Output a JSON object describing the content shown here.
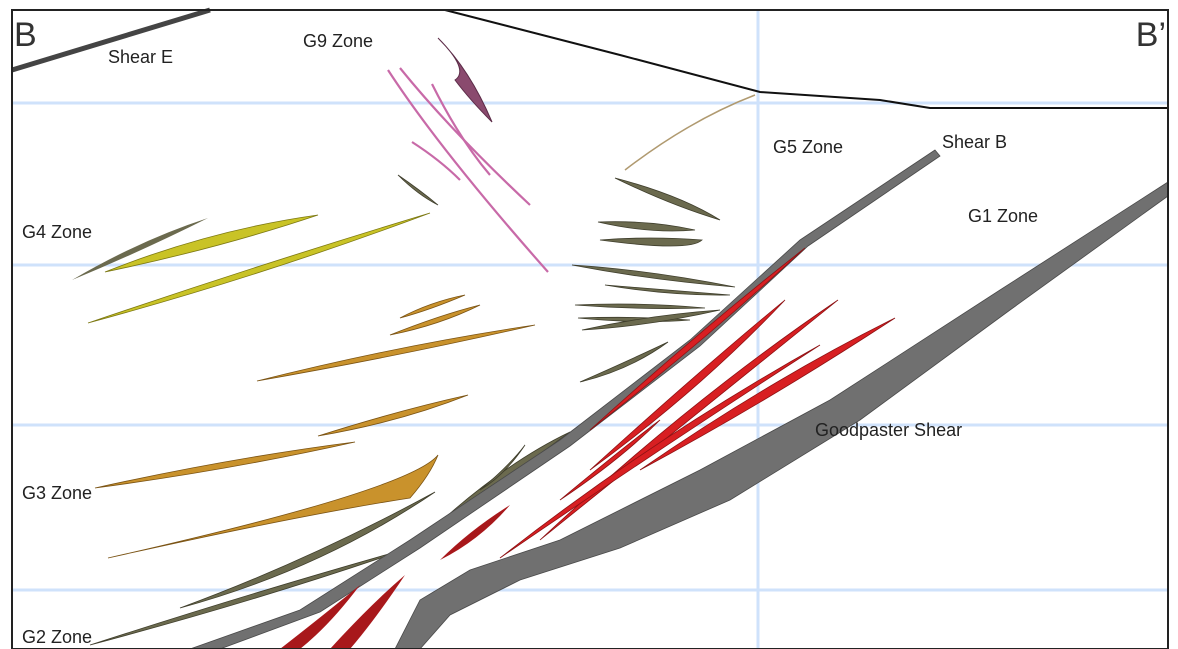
{
  "corners": {
    "left": "B",
    "right": "B’"
  },
  "labels": [
    "Shear E",
    "G9 Zone",
    "G5 Zone",
    "Shear B",
    "G1 Zone",
    "G4 Zone",
    "Goodpaster Shear",
    "G3 Zone",
    "G2 Zone"
  ]
}
